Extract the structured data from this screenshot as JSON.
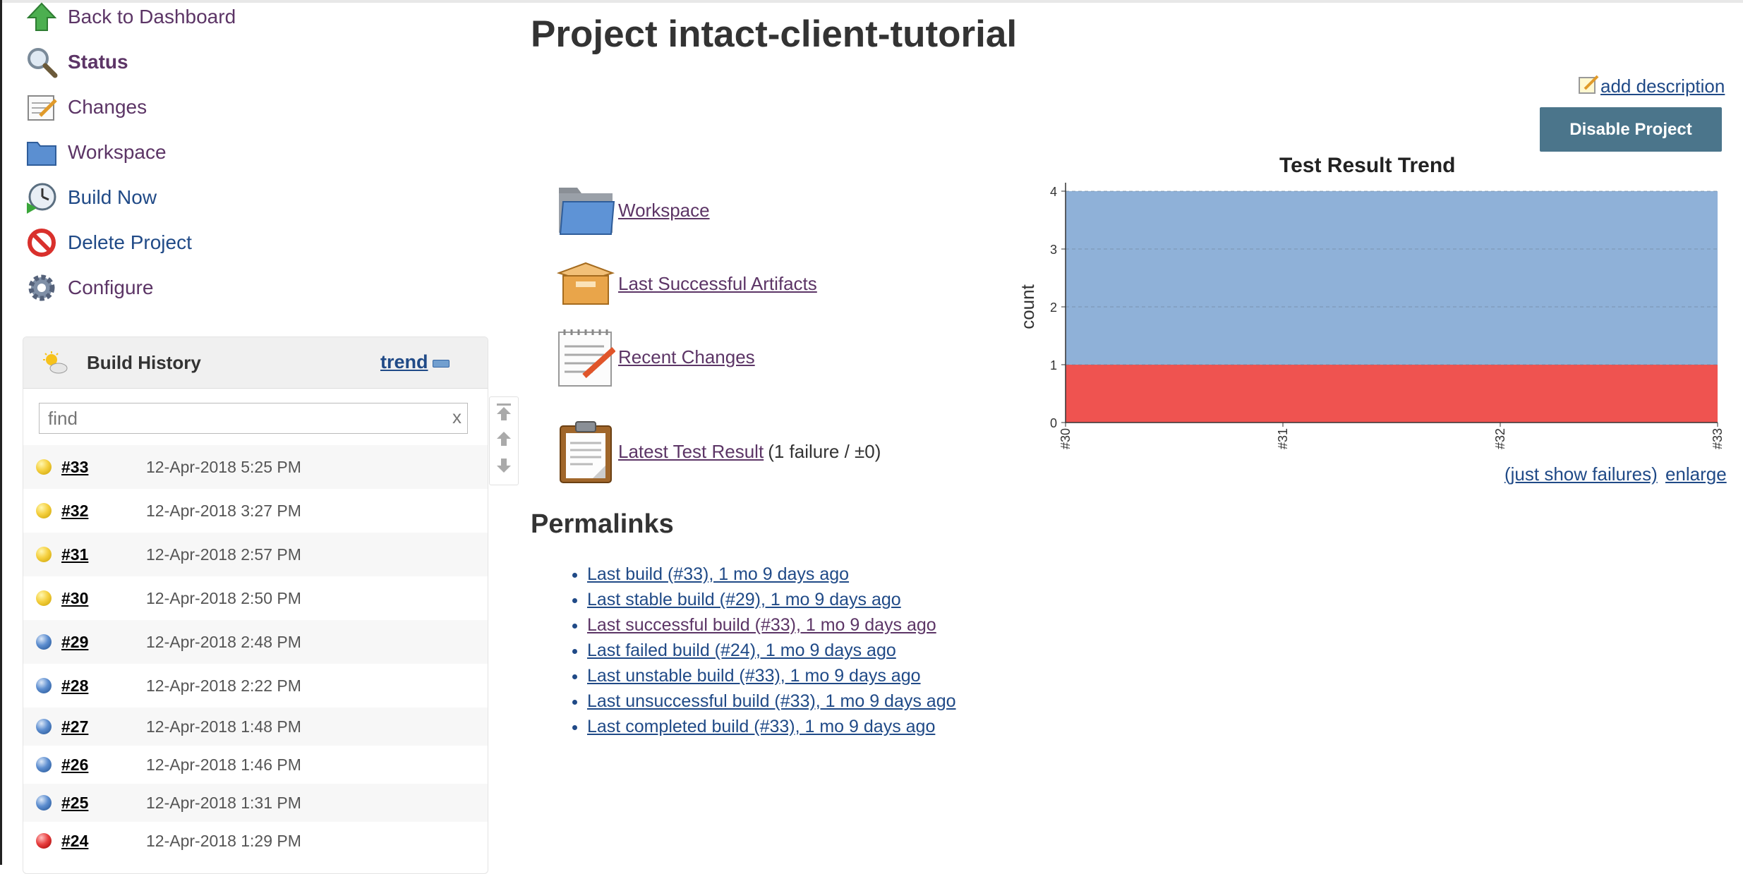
{
  "sidebar": {
    "tasks": [
      {
        "label": "Back to Dashboard",
        "icon": "up-arrow-icon"
      },
      {
        "label": "Status",
        "icon": "magnifier-icon"
      },
      {
        "label": "Changes",
        "icon": "notepad-icon"
      },
      {
        "label": "Workspace",
        "icon": "folder-icon"
      },
      {
        "label": "Build Now",
        "icon": "clock-play-icon"
      },
      {
        "label": "Delete Project",
        "icon": "no-entry-icon"
      },
      {
        "label": "Configure",
        "icon": "gear-icon"
      }
    ]
  },
  "build_history": {
    "title": "Build History",
    "trend_label": "trend",
    "find_placeholder": "find",
    "clear_label": "x",
    "builds": [
      {
        "number": "#33",
        "date": "12-Apr-2018 5:25 PM",
        "status": "yellow"
      },
      {
        "number": "#32",
        "date": "12-Apr-2018 3:27 PM",
        "status": "yellow"
      },
      {
        "number": "#31",
        "date": "12-Apr-2018 2:57 PM",
        "status": "yellow"
      },
      {
        "number": "#30",
        "date": "12-Apr-2018 2:50 PM",
        "status": "yellow"
      },
      {
        "number": "#29",
        "date": "12-Apr-2018 2:48 PM",
        "status": "blue"
      },
      {
        "number": "#28",
        "date": "12-Apr-2018 2:22 PM",
        "status": "blue"
      },
      {
        "number": "#27",
        "date": "12-Apr-2018 1:48 PM",
        "status": "blue"
      },
      {
        "number": "#26",
        "date": "12-Apr-2018 1:46 PM",
        "status": "blue"
      },
      {
        "number": "#25",
        "date": "12-Apr-2018 1:31 PM",
        "status": "blue"
      },
      {
        "number": "#24",
        "date": "12-Apr-2018 1:29 PM",
        "status": "red"
      }
    ],
    "status_colors": {
      "yellow": "#f5d040",
      "blue": "#5d8ed0",
      "red": "#e84040"
    }
  },
  "main": {
    "title": "Project intact-client-tutorial",
    "add_description": "add description",
    "disable_button": "Disable Project",
    "links": [
      {
        "label": "Workspace",
        "extra": "",
        "icon": "folder-icon"
      },
      {
        "label": "Last Successful Artifacts",
        "extra": "",
        "icon": "package-icon"
      },
      {
        "label": "Recent Changes",
        "extra": "",
        "icon": "notepad-icon"
      },
      {
        "label": "Latest Test Result",
        "extra": "(1 failure / ±0)",
        "icon": "clipboard-icon"
      }
    ],
    "permalinks_title": "Permalinks",
    "permalinks": [
      "Last build (#33), 1 mo 9 days ago",
      "Last stable build (#29), 1 mo 9 days ago",
      "Last successful build (#33), 1 mo 9 days ago",
      "Last failed build (#24), 1 mo 9 days ago",
      "Last unstable build (#33), 1 mo 9 days ago",
      "Last unsuccessful build (#33), 1 mo 9 days ago",
      "Last completed build (#33), 1 mo 9 days ago"
    ]
  },
  "chart_links": {
    "failures": "(just show failures)",
    "enlarge": "enlarge"
  },
  "chart_data": {
    "type": "area",
    "title": "Test Result Trend",
    "xlabel": "",
    "ylabel": "count",
    "categories": [
      "#30",
      "#31",
      "#32",
      "#33"
    ],
    "ylim": [
      0,
      4
    ],
    "yticks": [
      0,
      1,
      2,
      3,
      4
    ],
    "stacked": true,
    "grid": true,
    "series": [
      {
        "values": [
          1,
          1,
          1,
          1
        ],
        "color": "#ef5350"
      },
      {
        "values": [
          3,
          3,
          3,
          3
        ],
        "color": "#8fb1d8"
      }
    ]
  }
}
